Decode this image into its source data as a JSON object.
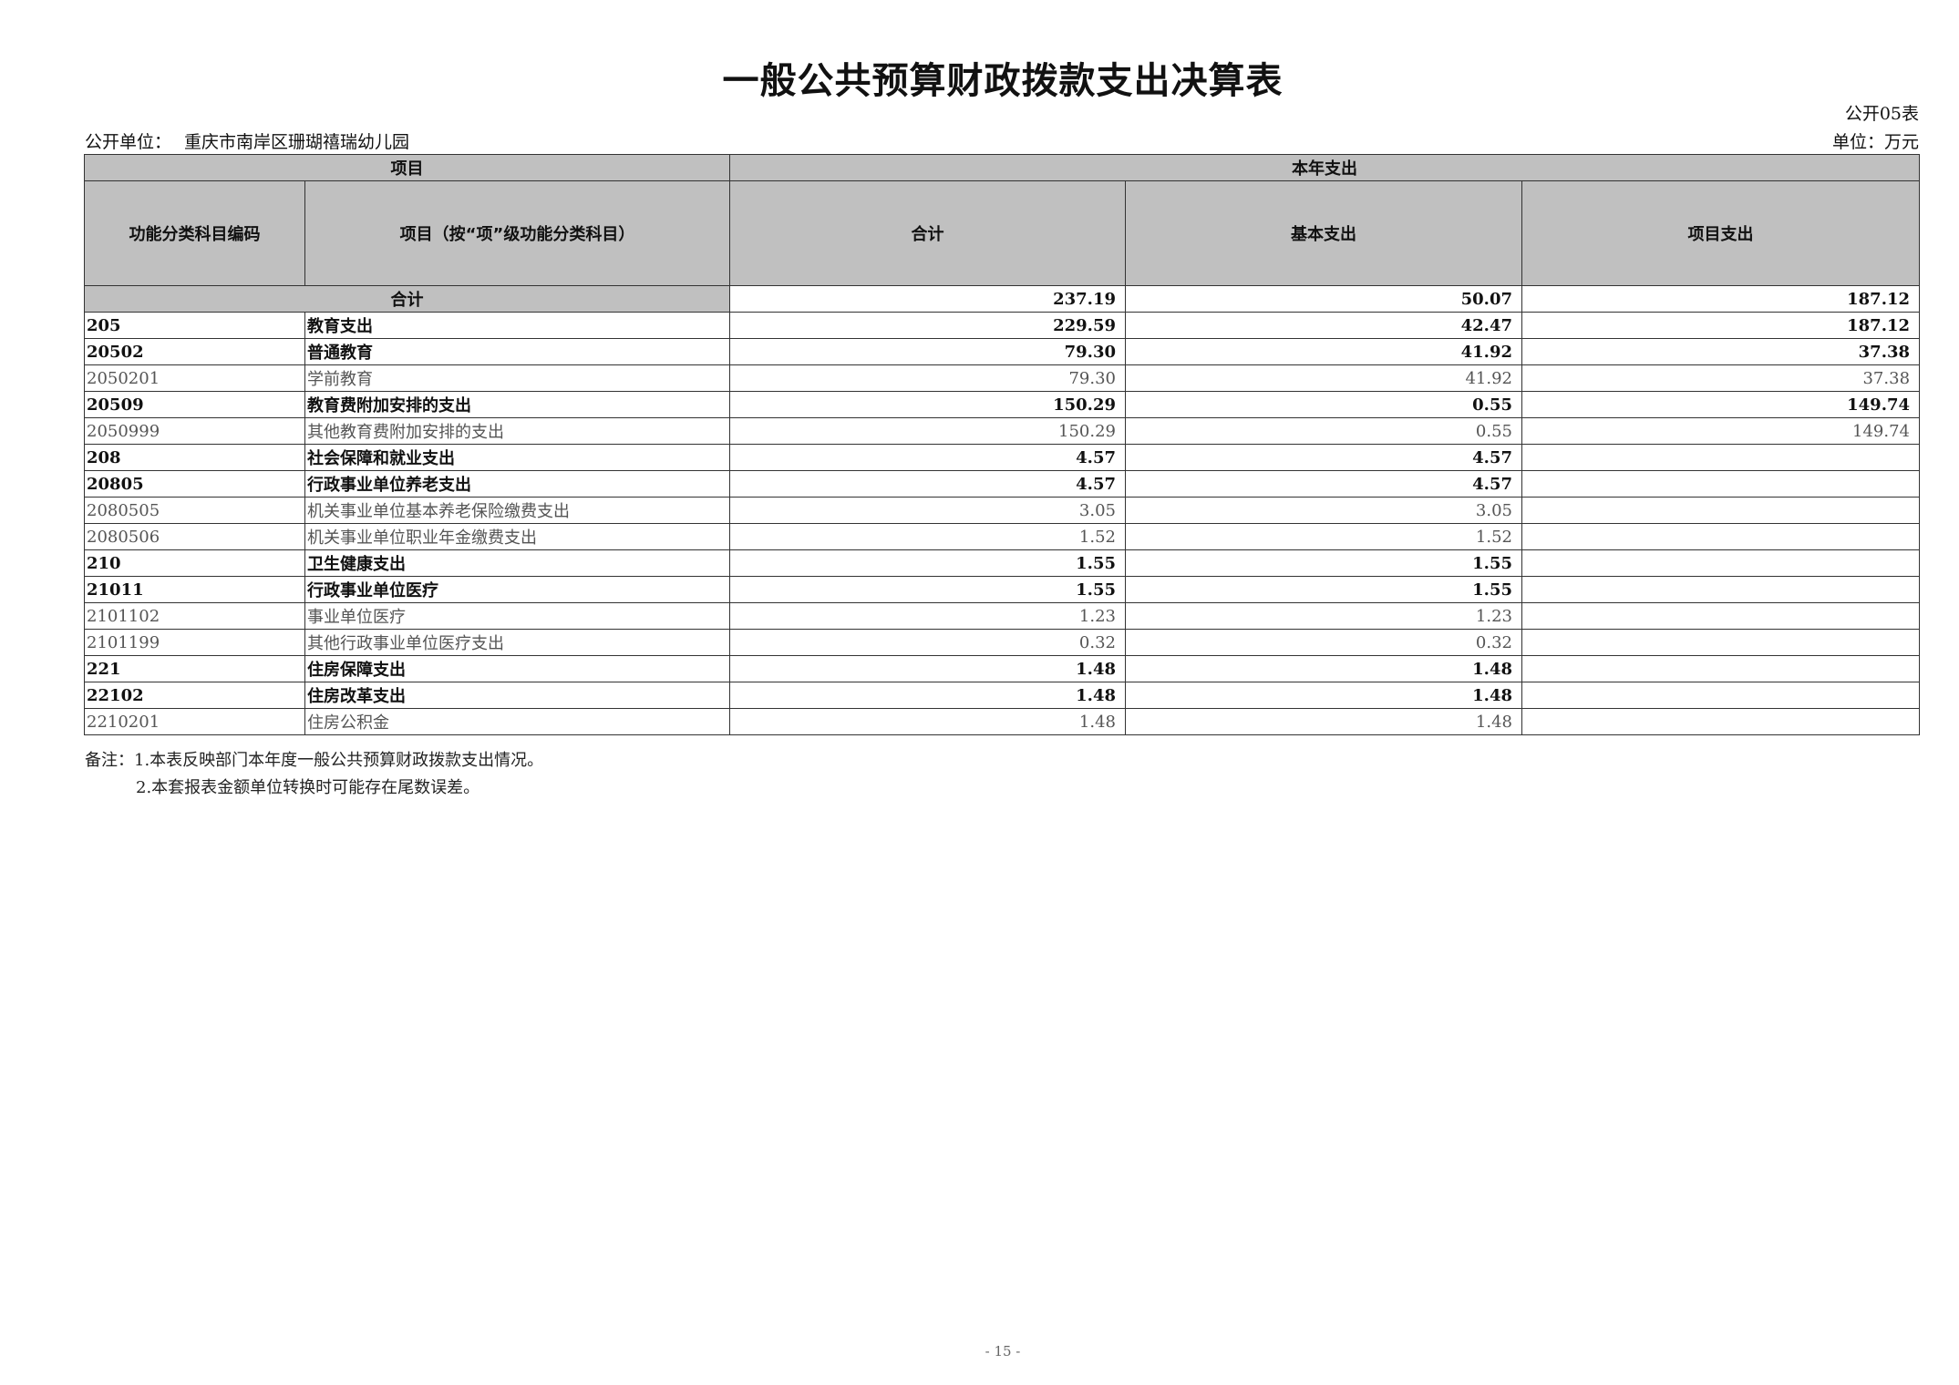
{
  "title": "一般公共预算财政拨款支出决算表",
  "table_no": "公开05表",
  "unit_label": "公开单位：",
  "unit_name": "重庆市南岸区珊瑚禧瑞幼儿园",
  "currency_unit": "单位：万元",
  "header": {
    "project": "项目",
    "current_year": "本年支出",
    "code": "功能分类科目编码",
    "name": "项目（按“项”级功能分类科目）",
    "total": "合计",
    "basic": "基本支出",
    "project_exp": "项目支出"
  },
  "total_row": {
    "label": "合计",
    "total": "237.19",
    "basic": "50.07",
    "project": "187.12"
  },
  "rows": [
    {
      "code": "205",
      "name": "教育支出",
      "total": "229.59",
      "basic": "42.47",
      "project": "187.12",
      "bold": true
    },
    {
      "code": "20502",
      "name": "普通教育",
      "total": "79.30",
      "basic": "41.92",
      "project": "37.38",
      "bold": true
    },
    {
      "code": "2050201",
      "name": "学前教育",
      "total": "79.30",
      "basic": "41.92",
      "project": "37.38",
      "bold": false
    },
    {
      "code": "20509",
      "name": "教育费附加安排的支出",
      "total": "150.29",
      "basic": "0.55",
      "project": "149.74",
      "bold": true
    },
    {
      "code": "2050999",
      "name": "其他教育费附加安排的支出",
      "total": "150.29",
      "basic": "0.55",
      "project": "149.74",
      "bold": false
    },
    {
      "code": "208",
      "name": "社会保障和就业支出",
      "total": "4.57",
      "basic": "4.57",
      "project": "",
      "bold": true
    },
    {
      "code": "20805",
      "name": "行政事业单位养老支出",
      "total": "4.57",
      "basic": "4.57",
      "project": "",
      "bold": true
    },
    {
      "code": "2080505",
      "name": "机关事业单位基本养老保险缴费支出",
      "total": "3.05",
      "basic": "3.05",
      "project": "",
      "bold": false
    },
    {
      "code": "2080506",
      "name": "机关事业单位职业年金缴费支出",
      "total": "1.52",
      "basic": "1.52",
      "project": "",
      "bold": false
    },
    {
      "code": "210",
      "name": "卫生健康支出",
      "total": "1.55",
      "basic": "1.55",
      "project": "",
      "bold": true
    },
    {
      "code": "21011",
      "name": "行政事业单位医疗",
      "total": "1.55",
      "basic": "1.55",
      "project": "",
      "bold": true
    },
    {
      "code": "2101102",
      "name": "事业单位医疗",
      "total": "1.23",
      "basic": "1.23",
      "project": "",
      "bold": false
    },
    {
      "code": "2101199",
      "name": "其他行政事业单位医疗支出",
      "total": "0.32",
      "basic": "0.32",
      "project": "",
      "bold": false
    },
    {
      "code": "221",
      "name": "住房保障支出",
      "total": "1.48",
      "basic": "1.48",
      "project": "",
      "bold": true
    },
    {
      "code": "22102",
      "name": "住房改革支出",
      "total": "1.48",
      "basic": "1.48",
      "project": "",
      "bold": true
    },
    {
      "code": "2210201",
      "name": "住房公积金",
      "total": "1.48",
      "basic": "1.48",
      "project": "",
      "bold": false
    }
  ],
  "notes": {
    "line1": "备注：1.本表反映部门本年度一般公共预算财政拨款支出情况。",
    "line2": "2.本套报表金额单位转换时可能存在尾数误差。"
  },
  "page_number": "- 15 -"
}
